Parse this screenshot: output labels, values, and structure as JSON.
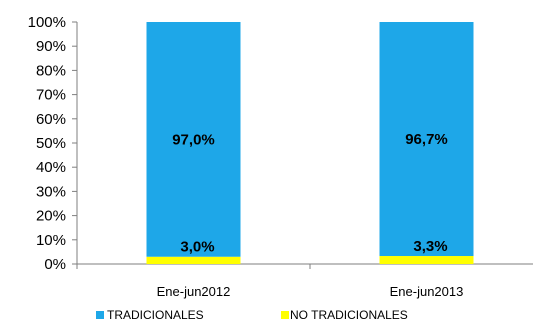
{
  "chart_data": {
    "type": "bar",
    "stacked": true,
    "title": "",
    "xlabel": "",
    "ylabel": "",
    "ylim": [
      0,
      100
    ],
    "y_ticks": [
      "0%",
      "10%",
      "20%",
      "30%",
      "40%",
      "50%",
      "60%",
      "70%",
      "80%",
      "90%",
      "100%"
    ],
    "categories": [
      "Ene-jun2012",
      "Ene-jun2013"
    ],
    "series": [
      {
        "name": "NO TRADICIONALES",
        "values": [
          3.0,
          3.3
        ],
        "labels": [
          "3,0%",
          "3,3%"
        ],
        "color": "#ffff00"
      },
      {
        "name": "TRADICIONALES",
        "values": [
          97.0,
          96.7
        ],
        "labels": [
          "97,0%",
          "96,7%"
        ],
        "color": "#1ea7e8"
      }
    ],
    "legend": {
      "placement": "bottom",
      "order": [
        "TRADICIONALES",
        "NO TRADICIONALES"
      ]
    },
    "grid": false
  }
}
